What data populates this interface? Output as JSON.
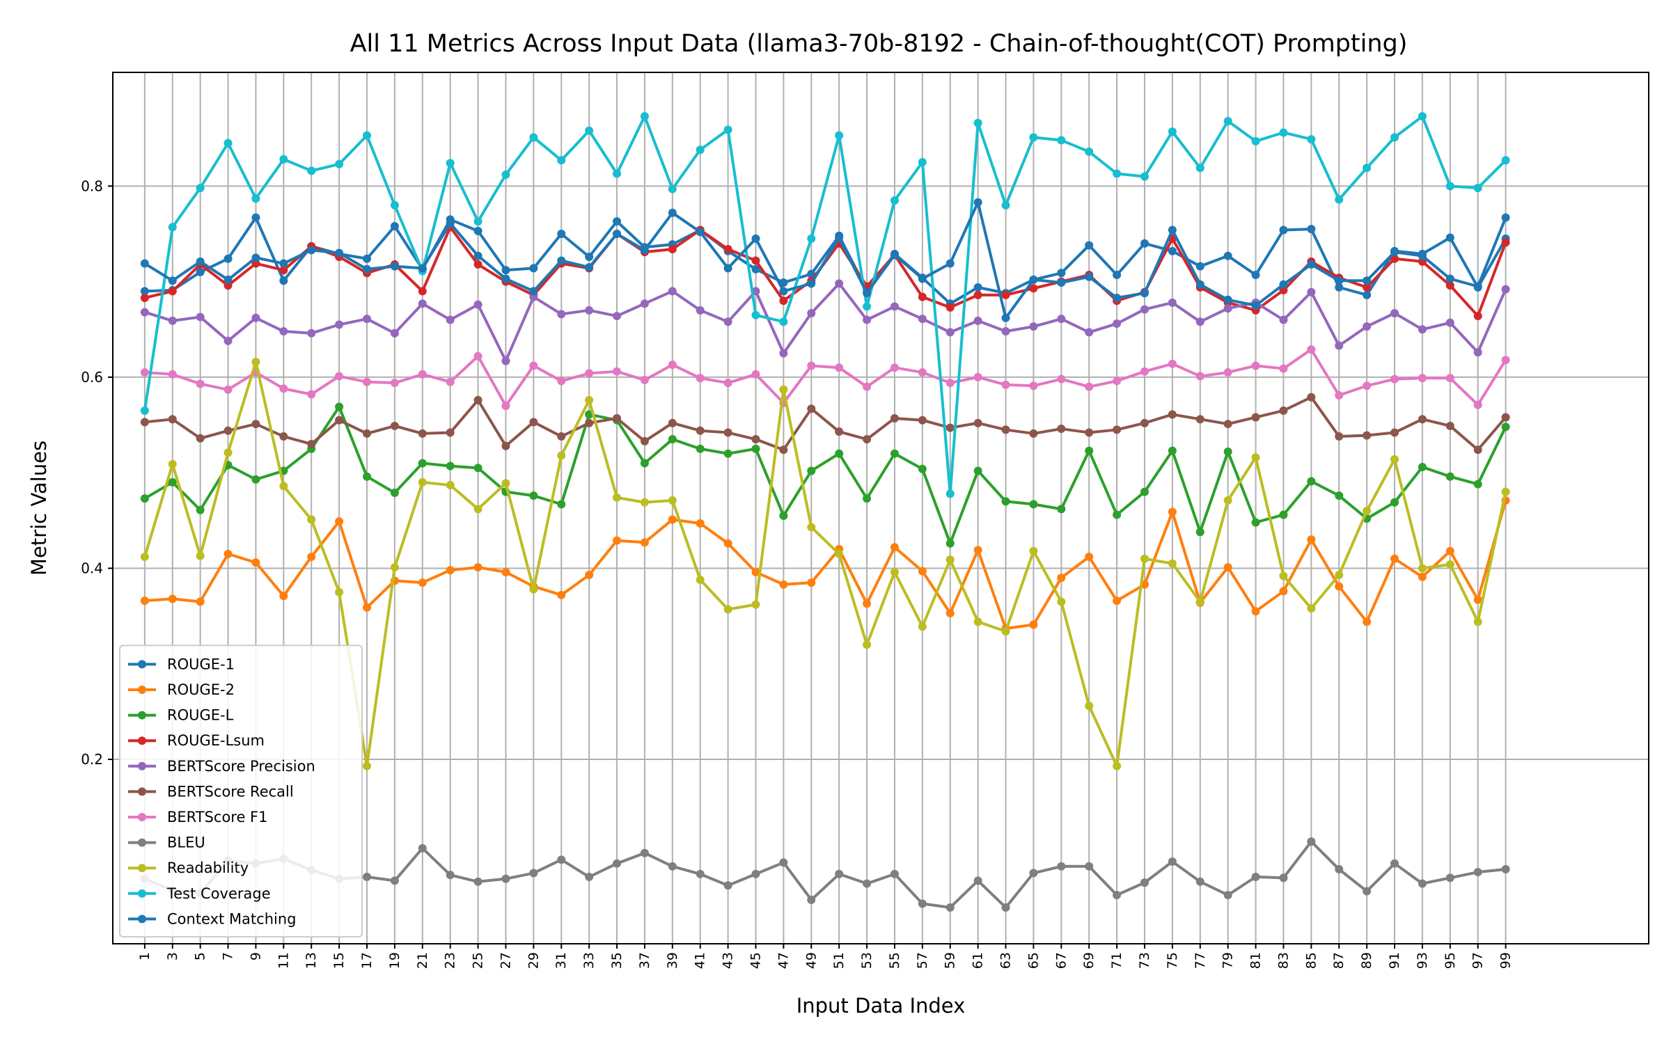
{
  "chart_data": {
    "type": "line",
    "title": "All 11 Metrics Across Input Data (llama3-70b-8192 - Chain-of-thought(COT) Prompting)",
    "xlabel": "Input Data Index",
    "ylabel": "Metric Values",
    "x": [
      1,
      3,
      5,
      7,
      9,
      11,
      13,
      15,
      17,
      19,
      21,
      23,
      25,
      27,
      29,
      31,
      33,
      35,
      37,
      39,
      41,
      43,
      45,
      47,
      49,
      51,
      53,
      55,
      57,
      59,
      61,
      63,
      65,
      67,
      69,
      71,
      73,
      75,
      77,
      79,
      81,
      83,
      85,
      87,
      89,
      91,
      93,
      95,
      97,
      99
    ],
    "xticks": [
      "1",
      "3",
      "5",
      "7",
      "9",
      "11",
      "13",
      "15",
      "17",
      "19",
      "21",
      "23",
      "25",
      "27",
      "29",
      "31",
      "33",
      "35",
      "37",
      "39",
      "41",
      "43",
      "45",
      "47",
      "49",
      "51",
      "53",
      "55",
      "57",
      "59",
      "61",
      "63",
      "65",
      "67",
      "69",
      "71",
      "73",
      "75",
      "77",
      "79",
      "81",
      "83",
      "85",
      "87",
      "89",
      "91",
      "93",
      "95",
      "97",
      "99"
    ],
    "yticks": [
      "0.2",
      "0.4",
      "0.6",
      "0.8"
    ],
    "ytick_values": [
      0.2,
      0.4,
      0.6,
      0.8
    ],
    "xlim": [
      -1.3,
      109.3
    ],
    "ylim": [
      0.007,
      0.919
    ],
    "grid": true,
    "legend_position": "lower-left",
    "series": [
      {
        "name": "ROUGE-1",
        "color": "#1f77b4",
        "values": [
          0.69,
          0.691,
          0.71,
          0.724,
          0.767,
          0.701,
          0.737,
          0.729,
          0.724,
          0.758,
          0.713,
          0.765,
          0.753,
          0.712,
          0.714,
          0.75,
          0.726,
          0.763,
          0.736,
          0.739,
          0.754,
          0.732,
          0.713,
          0.699,
          0.708,
          0.748,
          0.691,
          0.729,
          0.704,
          0.677,
          0.694,
          0.688,
          0.702,
          0.709,
          0.738,
          0.707,
          0.74,
          0.732,
          0.716,
          0.727,
          0.707,
          0.754,
          0.755,
          0.694,
          0.686,
          0.732,
          0.729,
          0.746,
          0.694,
          0.745
        ]
      },
      {
        "name": "ROUGE-2",
        "color": "#ff7f0e",
        "values": [
          0.366,
          0.368,
          0.365,
          0.415,
          0.406,
          0.371,
          0.412,
          0.449,
          0.359,
          0.387,
          0.385,
          0.398,
          0.401,
          0.396,
          0.381,
          0.372,
          0.393,
          0.429,
          0.427,
          0.451,
          0.447,
          0.426,
          0.396,
          0.383,
          0.385,
          0.42,
          0.363,
          0.422,
          0.397,
          0.353,
          0.419,
          0.337,
          0.341,
          0.39,
          0.412,
          0.366,
          0.383,
          0.459,
          0.364,
          0.401,
          0.355,
          0.376,
          0.43,
          0.381,
          0.344,
          0.41,
          0.391,
          0.418,
          0.367,
          0.471
        ]
      },
      {
        "name": "ROUGE-L",
        "color": "#2ca02c",
        "values": [
          0.473,
          0.49,
          0.461,
          0.508,
          0.493,
          0.502,
          0.525,
          0.569,
          0.496,
          0.479,
          0.51,
          0.507,
          0.505,
          0.48,
          0.476,
          0.467,
          0.561,
          0.555,
          0.51,
          0.535,
          0.525,
          0.52,
          0.525,
          0.455,
          0.502,
          0.52,
          0.473,
          0.52,
          0.504,
          0.426,
          0.502,
          0.47,
          0.467,
          0.462,
          0.523,
          0.456,
          0.48,
          0.523,
          0.438,
          0.522,
          0.448,
          0.456,
          0.491,
          0.476,
          0.452,
          0.469,
          0.506,
          0.496,
          0.488,
          0.548
        ]
      },
      {
        "name": "ROUGE-Lsum",
        "color": "#d62728",
        "values": [
          0.683,
          0.69,
          0.718,
          0.696,
          0.719,
          0.712,
          0.737,
          0.726,
          0.709,
          0.718,
          0.69,
          0.757,
          0.718,
          0.7,
          0.686,
          0.719,
          0.714,
          0.75,
          0.731,
          0.734,
          0.754,
          0.734,
          0.722,
          0.68,
          0.701,
          0.74,
          0.695,
          0.728,
          0.684,
          0.673,
          0.686,
          0.686,
          0.693,
          0.7,
          0.707,
          0.68,
          0.689,
          0.745,
          0.694,
          0.678,
          0.67,
          0.691,
          0.721,
          0.704,
          0.694,
          0.724,
          0.721,
          0.696,
          0.664,
          0.741
        ]
      },
      {
        "name": "BERTScore Precision",
        "color": "#9467bd",
        "values": [
          0.668,
          0.659,
          0.663,
          0.638,
          0.662,
          0.648,
          0.646,
          0.655,
          0.661,
          0.646,
          0.677,
          0.66,
          0.676,
          0.617,
          0.684,
          0.666,
          0.67,
          0.664,
          0.677,
          0.69,
          0.67,
          0.658,
          0.69,
          0.625,
          0.667,
          0.698,
          0.66,
          0.674,
          0.661,
          0.647,
          0.659,
          0.648,
          0.653,
          0.661,
          0.647,
          0.656,
          0.671,
          0.678,
          0.658,
          0.672,
          0.678,
          0.66,
          0.689,
          0.633,
          0.653,
          0.667,
          0.65,
          0.657,
          0.626,
          0.692
        ]
      },
      {
        "name": "BERTScore Recall",
        "color": "#8c564b",
        "values": [
          0.553,
          0.556,
          0.536,
          0.544,
          0.551,
          0.538,
          0.53,
          0.555,
          0.541,
          0.549,
          0.541,
          0.542,
          0.576,
          0.528,
          0.553,
          0.538,
          0.552,
          0.557,
          0.533,
          0.552,
          0.544,
          0.542,
          0.535,
          0.524,
          0.567,
          0.543,
          0.535,
          0.557,
          0.555,
          0.547,
          0.552,
          0.545,
          0.541,
          0.546,
          0.542,
          0.545,
          0.552,
          0.561,
          0.556,
          0.551,
          0.558,
          0.565,
          0.579,
          0.538,
          0.539,
          0.542,
          0.556,
          0.549,
          0.524,
          0.558
        ]
      },
      {
        "name": "BERTScore F1",
        "color": "#e377c2",
        "values": [
          0.605,
          0.603,
          0.593,
          0.587,
          0.605,
          0.588,
          0.582,
          0.601,
          0.595,
          0.594,
          0.603,
          0.595,
          0.622,
          0.57,
          0.612,
          0.596,
          0.604,
          0.606,
          0.597,
          0.613,
          0.599,
          0.594,
          0.603,
          0.573,
          0.612,
          0.61,
          0.59,
          0.61,
          0.605,
          0.594,
          0.6,
          0.592,
          0.591,
          0.598,
          0.59,
          0.596,
          0.606,
          0.614,
          0.601,
          0.605,
          0.612,
          0.609,
          0.629,
          0.581,
          0.591,
          0.598,
          0.599,
          0.599,
          0.571,
          0.618
        ]
      },
      {
        "name": "BLEU",
        "color": "#7f7f7f",
        "values": [
          0.075,
          0.063,
          0.06,
          0.094,
          0.091,
          0.096,
          0.084,
          0.075,
          0.077,
          0.073,
          0.107,
          0.079,
          0.072,
          0.075,
          0.081,
          0.095,
          0.077,
          0.091,
          0.102,
          0.088,
          0.08,
          0.068,
          0.08,
          0.092,
          0.053,
          0.08,
          0.07,
          0.08,
          0.049,
          0.045,
          0.073,
          0.045,
          0.081,
          0.088,
          0.088,
          0.058,
          0.071,
          0.093,
          0.072,
          0.058,
          0.077,
          0.076,
          0.114,
          0.085,
          0.062,
          0.091,
          0.07,
          0.076,
          0.082,
          0.085
        ]
      },
      {
        "name": "Readability",
        "color": "#bcbd22",
        "values": [
          0.412,
          0.509,
          0.413,
          0.521,
          0.616,
          0.486,
          0.451,
          0.375,
          0.193,
          0.401,
          0.49,
          0.487,
          0.462,
          0.489,
          0.378,
          0.518,
          0.576,
          0.474,
          0.469,
          0.471,
          0.388,
          0.357,
          0.362,
          0.587,
          0.443,
          0.415,
          0.32,
          0.396,
          0.339,
          0.409,
          0.344,
          0.334,
          0.418,
          0.365,
          0.256,
          0.193,
          0.41,
          0.405,
          0.365,
          0.471,
          0.516,
          0.392,
          0.358,
          0.393,
          0.46,
          0.514,
          0.4,
          0.404,
          0.344,
          0.48
        ]
      },
      {
        "name": "Test Coverage",
        "color": "#17becf",
        "values": [
          0.565,
          0.757,
          0.798,
          0.845,
          0.787,
          0.828,
          0.816,
          0.823,
          0.853,
          0.78,
          0.711,
          0.824,
          0.763,
          0.812,
          0.851,
          0.827,
          0.858,
          0.813,
          0.873,
          0.797,
          0.838,
          0.859,
          0.665,
          0.658,
          0.745,
          0.853,
          0.674,
          0.785,
          0.825,
          0.478,
          0.866,
          0.78,
          0.851,
          0.848,
          0.836,
          0.813,
          0.81,
          0.857,
          0.819,
          0.868,
          0.847,
          0.856,
          0.849,
          0.786,
          0.819,
          0.851,
          0.873,
          0.8,
          0.798,
          0.827
        ]
      },
      {
        "name": "Context Matching",
        "color": "#1f77b4",
        "values": [
          0.719,
          0.701,
          0.721,
          0.702,
          0.725,
          0.719,
          0.733,
          0.73,
          0.713,
          0.716,
          0.714,
          0.761,
          0.727,
          0.703,
          0.69,
          0.722,
          0.715,
          0.75,
          0.733,
          0.772,
          0.752,
          0.714,
          0.745,
          0.69,
          0.698,
          0.746,
          0.688,
          0.728,
          0.703,
          0.719,
          0.783,
          0.662,
          0.702,
          0.699,
          0.705,
          0.683,
          0.688,
          0.754,
          0.697,
          0.681,
          0.675,
          0.697,
          0.718,
          0.701,
          0.701,
          0.731,
          0.727,
          0.703,
          0.695,
          0.767
        ]
      }
    ]
  }
}
